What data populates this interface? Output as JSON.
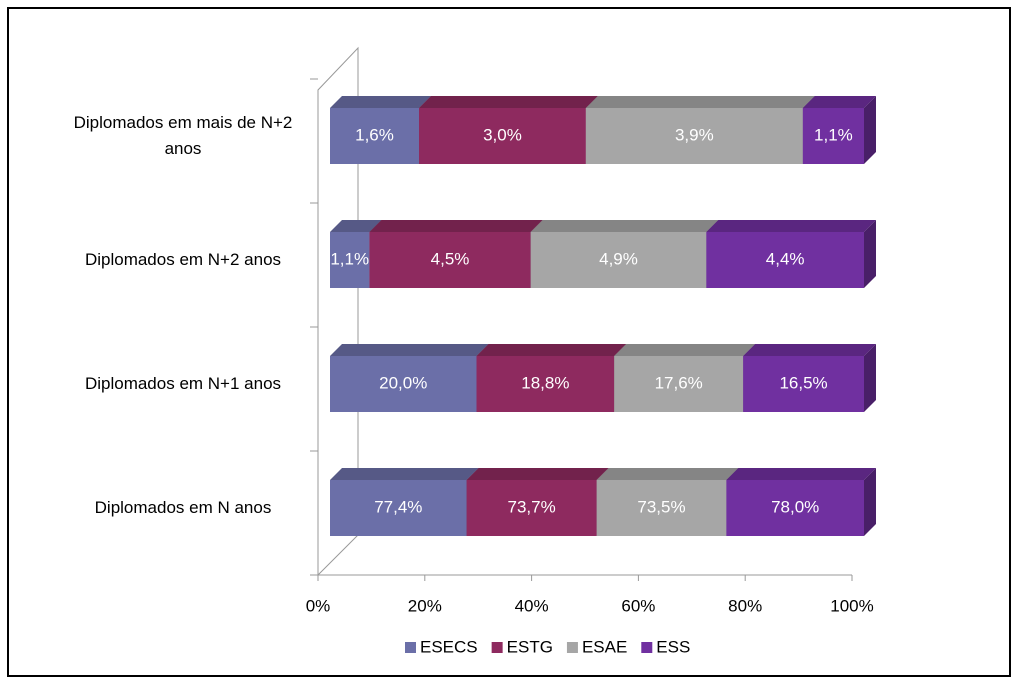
{
  "chart_data": {
    "type": "bar",
    "orientation": "horizontal",
    "stack": "percent",
    "categories": [
      "Diplomados em N anos",
      "Diplomados em N+1 anos",
      "Diplomados em N+2 anos",
      "Diplomados em mais de N+2 anos"
    ],
    "series": [
      {
        "name": "ESECS",
        "color": "#6b6fa8",
        "values": [
          77.4,
          20.0,
          1.1,
          1.6
        ],
        "value_labels": [
          "77,4%",
          "20,0%",
          "1,1%",
          "1,6%"
        ]
      },
      {
        "name": "ESTG",
        "color": "#8e2a5f",
        "values": [
          73.7,
          18.8,
          4.5,
          3.0
        ],
        "value_labels": [
          "73,7%",
          "18,8%",
          "4,5%",
          "3,0%"
        ]
      },
      {
        "name": "ESAE",
        "color": "#a6a6a6",
        "values": [
          73.5,
          17.6,
          4.9,
          3.9
        ],
        "value_labels": [
          "73,5%",
          "17,6%",
          "4,9%",
          "3,9%"
        ]
      },
      {
        "name": "ESS",
        "color": "#7030a0",
        "values": [
          78.0,
          16.5,
          4.4,
          1.1
        ],
        "value_labels": [
          "78,0%",
          "16,5%",
          "4,4%",
          "1,1%"
        ]
      }
    ],
    "xlim": [
      0,
      100
    ],
    "xticks": [
      {
        "value": 0,
        "label": "0%"
      },
      {
        "value": 20,
        "label": "20%"
      },
      {
        "value": 40,
        "label": "40%"
      },
      {
        "value": 60,
        "label": "60%"
      },
      {
        "value": 80,
        "label": "80%"
      },
      {
        "value": 100,
        "label": "100%"
      }
    ],
    "legend": "bottom"
  }
}
